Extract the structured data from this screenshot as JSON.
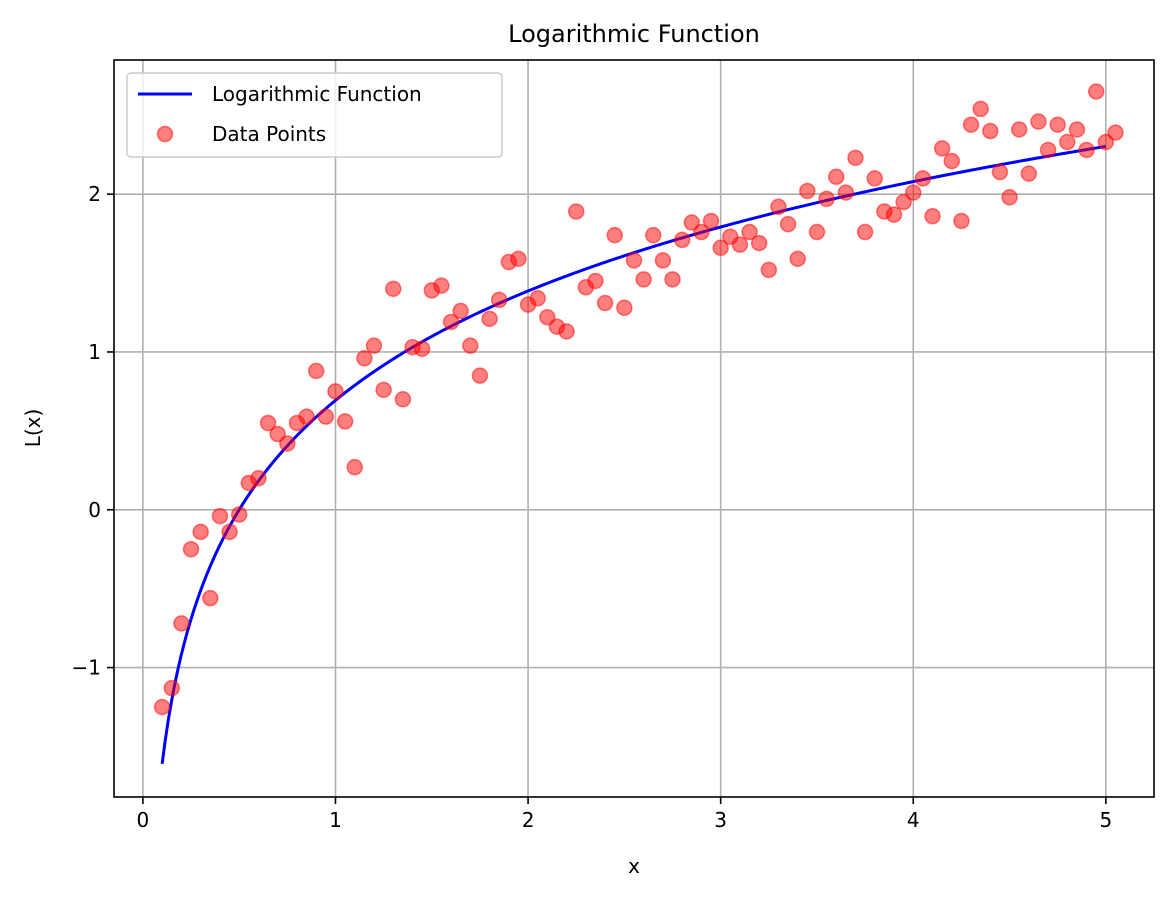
{
  "chart_data": {
    "type": "line+scatter",
    "title": "Logarithmic Function",
    "xlabel": "x",
    "ylabel": "L(x)",
    "xlim": [
      -0.15,
      5.25
    ],
    "ylim": [
      -1.82,
      2.85
    ],
    "xticks": [
      0,
      1,
      2,
      3,
      4,
      5
    ],
    "xtick_labels": [
      "0",
      "1",
      "2",
      "3",
      "4",
      "5"
    ],
    "yticks": [
      -1,
      0,
      1,
      2
    ],
    "ytick_labels": [
      "−1",
      "0",
      "1",
      "2"
    ],
    "grid": true,
    "legend_position": "top-left",
    "series": [
      {
        "name": "Logarithmic Function",
        "kind": "line",
        "color": "#0000ff",
        "function": "ln(2x)",
        "x_range": [
          0.1,
          5.0
        ]
      },
      {
        "name": "Data Points",
        "kind": "scatter",
        "color": "#ff0000",
        "opacity": 0.5,
        "points": [
          [
            0.1,
            -1.25
          ],
          [
            0.15,
            -1.13
          ],
          [
            0.2,
            -0.72
          ],
          [
            0.25,
            -0.25
          ],
          [
            0.3,
            -0.14
          ],
          [
            0.35,
            -0.56
          ],
          [
            0.4,
            -0.04
          ],
          [
            0.45,
            -0.14
          ],
          [
            0.5,
            -0.03
          ],
          [
            0.55,
            0.17
          ],
          [
            0.6,
            0.2
          ],
          [
            0.65,
            0.55
          ],
          [
            0.7,
            0.48
          ],
          [
            0.75,
            0.42
          ],
          [
            0.8,
            0.55
          ],
          [
            0.85,
            0.59
          ],
          [
            0.9,
            0.88
          ],
          [
            0.95,
            0.59
          ],
          [
            1.0,
            0.75
          ],
          [
            1.05,
            0.56
          ],
          [
            1.1,
            0.27
          ],
          [
            1.15,
            0.96
          ],
          [
            1.2,
            1.04
          ],
          [
            1.25,
            0.76
          ],
          [
            1.3,
            1.4
          ],
          [
            1.35,
            0.7
          ],
          [
            1.4,
            1.03
          ],
          [
            1.45,
            1.02
          ],
          [
            1.5,
            1.39
          ],
          [
            1.55,
            1.42
          ],
          [
            1.6,
            1.19
          ],
          [
            1.65,
            1.26
          ],
          [
            1.7,
            1.04
          ],
          [
            1.75,
            0.85
          ],
          [
            1.8,
            1.21
          ],
          [
            1.85,
            1.33
          ],
          [
            1.9,
            1.57
          ],
          [
            1.95,
            1.59
          ],
          [
            2.0,
            1.3
          ],
          [
            2.05,
            1.34
          ],
          [
            2.1,
            1.22
          ],
          [
            2.15,
            1.16
          ],
          [
            2.2,
            1.13
          ],
          [
            2.25,
            1.89
          ],
          [
            2.3,
            1.41
          ],
          [
            2.35,
            1.45
          ],
          [
            2.4,
            1.31
          ],
          [
            2.45,
            1.74
          ],
          [
            2.5,
            1.28
          ],
          [
            2.55,
            1.58
          ],
          [
            2.6,
            1.46
          ],
          [
            2.65,
            1.74
          ],
          [
            2.7,
            1.58
          ],
          [
            2.75,
            1.46
          ],
          [
            2.8,
            1.71
          ],
          [
            2.85,
            1.82
          ],
          [
            2.9,
            1.76
          ],
          [
            2.95,
            1.83
          ],
          [
            3.0,
            1.66
          ],
          [
            3.05,
            1.73
          ],
          [
            3.1,
            1.68
          ],
          [
            3.15,
            1.76
          ],
          [
            3.2,
            1.69
          ],
          [
            3.25,
            1.52
          ],
          [
            3.3,
            1.92
          ],
          [
            3.35,
            1.81
          ],
          [
            3.4,
            1.59
          ],
          [
            3.45,
            2.02
          ],
          [
            3.5,
            1.76
          ],
          [
            3.55,
            1.97
          ],
          [
            3.6,
            2.11
          ],
          [
            3.65,
            2.01
          ],
          [
            3.7,
            2.23
          ],
          [
            3.75,
            1.76
          ],
          [
            3.8,
            2.1
          ],
          [
            3.85,
            1.89
          ],
          [
            3.9,
            1.87
          ],
          [
            3.95,
            1.95
          ],
          [
            4.0,
            2.01
          ],
          [
            4.05,
            2.1
          ],
          [
            4.1,
            1.86
          ],
          [
            4.15,
            2.29
          ],
          [
            4.2,
            2.21
          ],
          [
            4.25,
            1.83
          ],
          [
            4.3,
            2.44
          ],
          [
            4.35,
            2.54
          ],
          [
            4.4,
            2.4
          ],
          [
            4.45,
            2.14
          ],
          [
            4.5,
            1.98
          ],
          [
            4.55,
            2.41
          ],
          [
            4.6,
            2.13
          ],
          [
            4.65,
            2.46
          ],
          [
            4.7,
            2.28
          ],
          [
            4.75,
            2.44
          ],
          [
            4.8,
            2.33
          ],
          [
            4.85,
            2.41
          ],
          [
            4.9,
            2.28
          ],
          [
            4.95,
            2.65
          ],
          [
            5.0,
            2.33
          ],
          [
            5.05,
            2.39
          ]
        ]
      }
    ]
  }
}
